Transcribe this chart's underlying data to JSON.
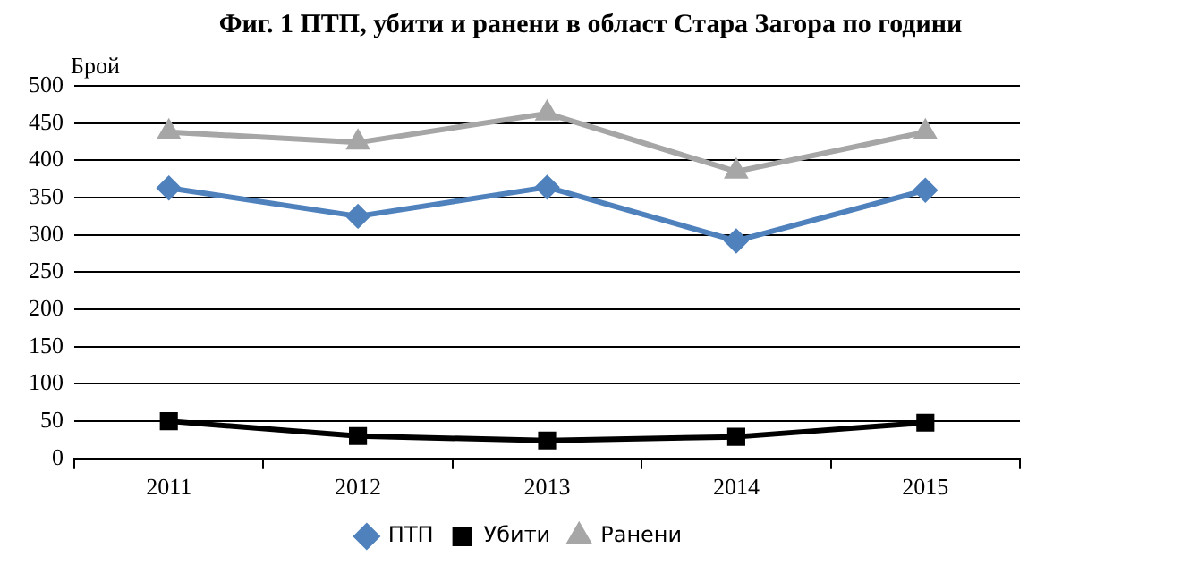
{
  "chart_data": {
    "type": "line",
    "title": "Фиг. 1 ПТП, убити и ранени в област Стара Загора по години",
    "ylabel": "Брой",
    "categories": [
      "2011",
      "2012",
      "2013",
      "2014",
      "2015"
    ],
    "series": [
      {
        "name": "ПТП",
        "color": "#4f81bd",
        "values": [
          363,
          325,
          364,
          292,
          360
        ],
        "marker": "diamond"
      },
      {
        "name": "Убити",
        "color": "#000000",
        "values": [
          50,
          30,
          24,
          29,
          48
        ],
        "marker": "square"
      },
      {
        "name": "Ранени",
        "color": "#a6a6a6",
        "values": [
          438,
          424,
          463,
          385,
          438
        ],
        "marker": "triangle"
      }
    ],
    "ylim": [
      0,
      500
    ],
    "yticks": [
      0,
      50,
      100,
      150,
      200,
      250,
      300,
      350,
      400,
      450,
      500
    ],
    "grid": "y",
    "legend": "bottom"
  }
}
